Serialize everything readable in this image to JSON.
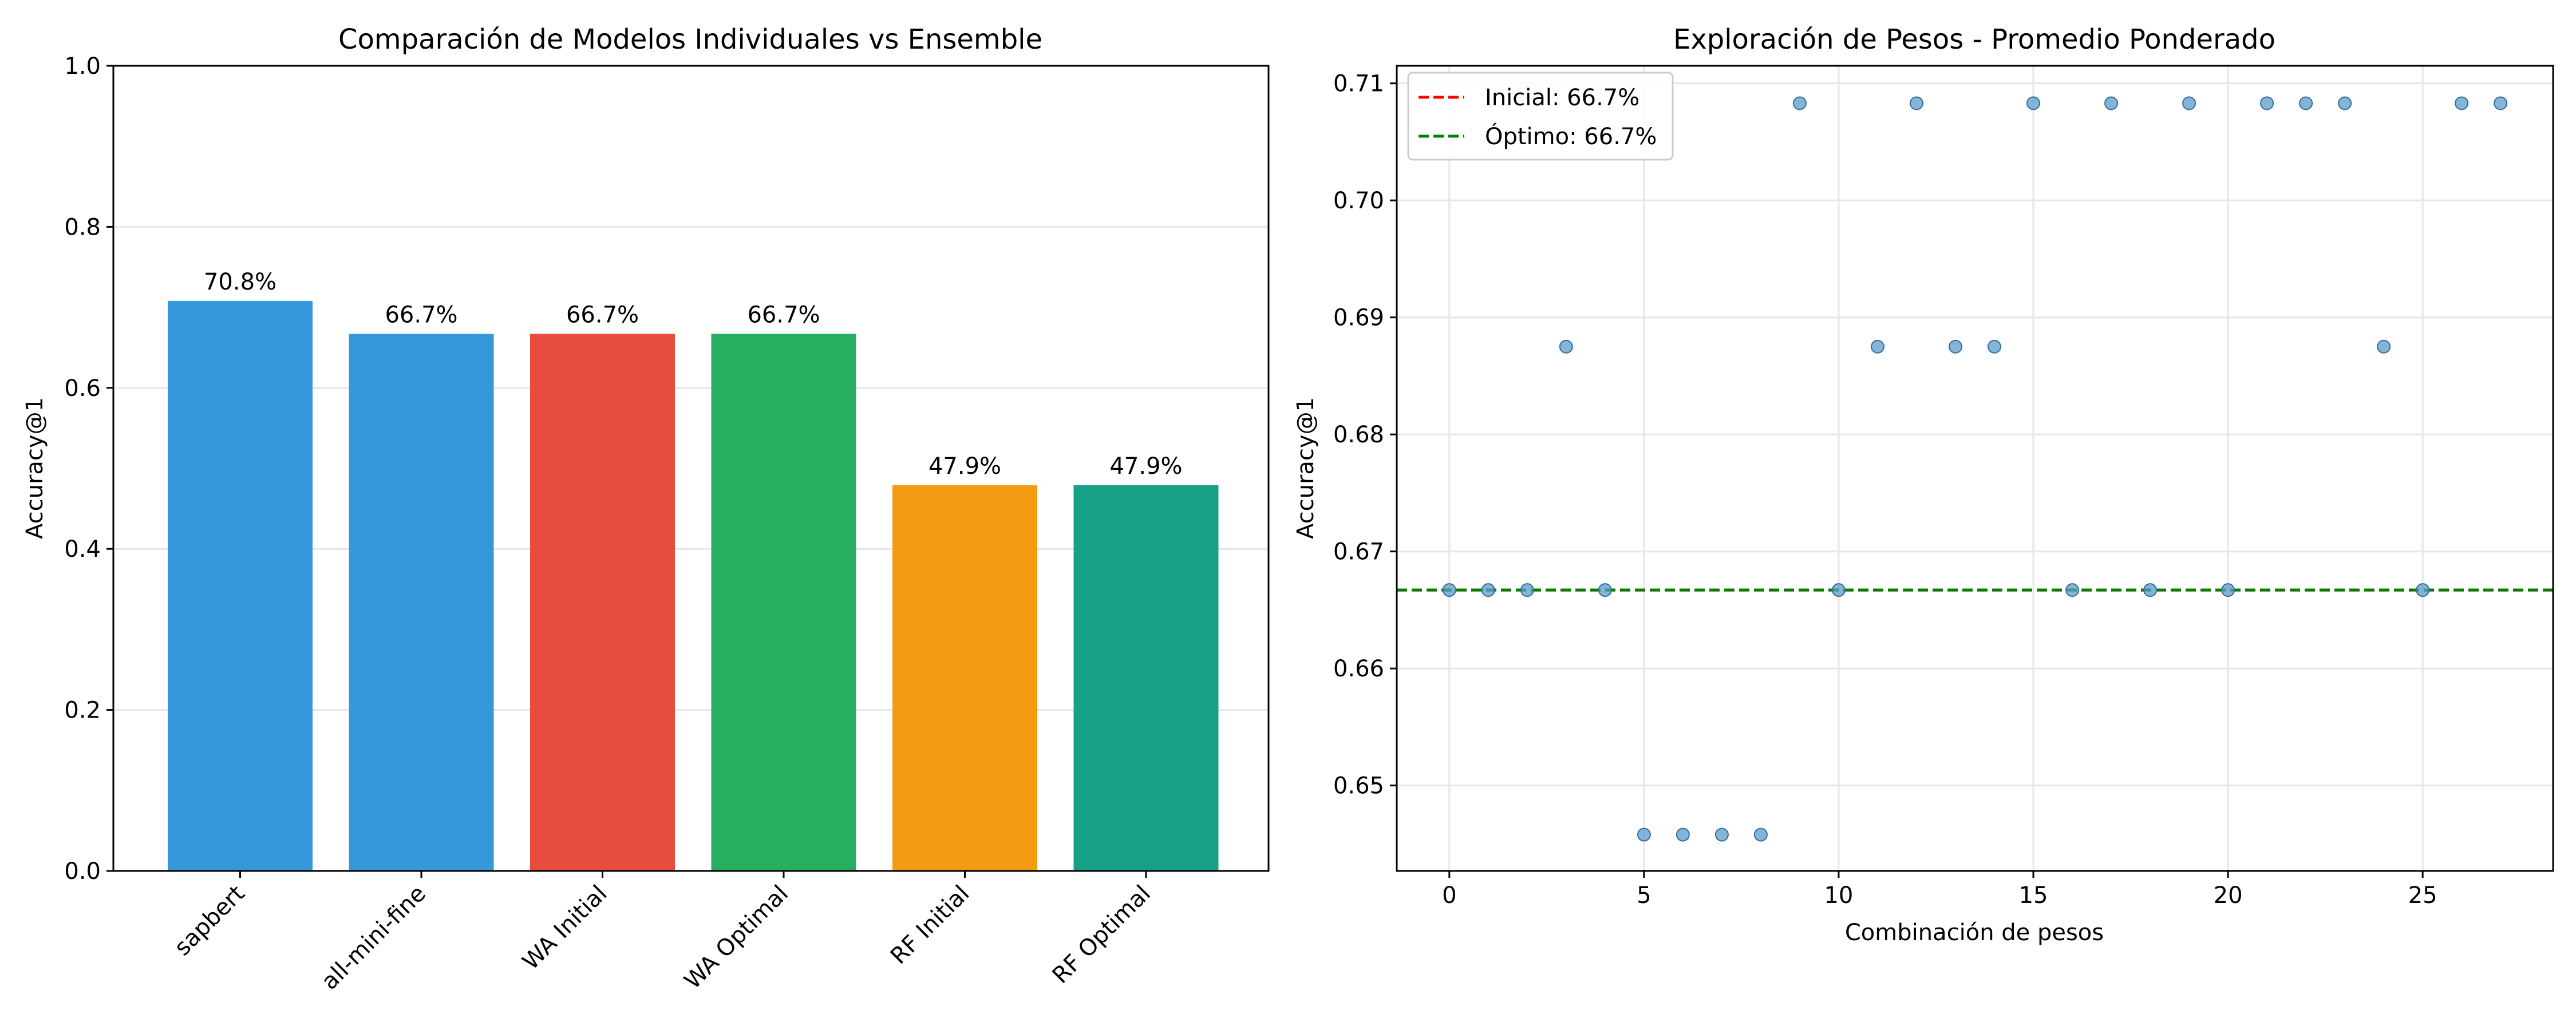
{
  "chart_data": [
    {
      "type": "bar",
      "title": "Comparación de Modelos Individuales vs Ensemble",
      "xlabel": "",
      "ylabel": "Accuracy@1",
      "ylim": [
        0,
        1.0
      ],
      "yticks": [
        0.0,
        0.2,
        0.4,
        0.6,
        0.8,
        1.0
      ],
      "ytick_labels": [
        "0.0",
        "0.2",
        "0.4",
        "0.6",
        "0.8",
        "1.0"
      ],
      "grid": "y",
      "categories": [
        "sapbert",
        "all-mini-fine",
        "WA Initial",
        "WA Optimal",
        "RF Initial",
        "RF Optimal"
      ],
      "values": [
        0.708,
        0.667,
        0.667,
        0.667,
        0.479,
        0.479
      ],
      "value_labels": [
        "70.8%",
        "66.7%",
        "66.7%",
        "66.7%",
        "47.9%",
        "47.9%"
      ],
      "colors": [
        "#3498db",
        "#3498db",
        "#e74c3c",
        "#27ae60",
        "#f39c12",
        "#16a085"
      ]
    },
    {
      "type": "scatter",
      "title": "Exploración de Pesos - Promedio Ponderado",
      "xlabel": "Combinación de pesos",
      "ylabel": "Accuracy@1",
      "xlim": [
        -1.35,
        28.35
      ],
      "ylim": [
        0.6427,
        0.7115
      ],
      "xticks": [
        0,
        5,
        10,
        15,
        20,
        25
      ],
      "xtick_labels": [
        "0",
        "5",
        "10",
        "15",
        "20",
        "25"
      ],
      "yticks": [
        0.65,
        0.66,
        0.67,
        0.68,
        0.69,
        0.7,
        0.71
      ],
      "ytick_labels": [
        "0.65",
        "0.66",
        "0.67",
        "0.68",
        "0.69",
        "0.70",
        "0.71"
      ],
      "grid": "both",
      "point_color": "#5b9bc8",
      "x": [
        0,
        1,
        2,
        3,
        4,
        5,
        6,
        7,
        8,
        9,
        10,
        11,
        12,
        13,
        14,
        15,
        16,
        17,
        18,
        19,
        20,
        21,
        22,
        23,
        24,
        25,
        26,
        27
      ],
      "y": [
        0.6667,
        0.6667,
        0.6667,
        0.6875,
        0.6667,
        0.6458,
        0.6458,
        0.6458,
        0.6458,
        0.7083,
        0.6667,
        0.6875,
        0.7083,
        0.6875,
        0.6875,
        0.7083,
        0.6667,
        0.7083,
        0.6667,
        0.7083,
        0.6667,
        0.7083,
        0.7083,
        0.7083,
        0.6875,
        0.6667,
        0.7083,
        0.7083
      ],
      "reference_lines": [
        {
          "name": "Inicial: 66.7%",
          "value": 0.6667,
          "color": "#ff0000",
          "style": "dashed"
        },
        {
          "name": "Óptimo: 66.7%",
          "value": 0.6667,
          "color": "#008000",
          "style": "dashed"
        }
      ],
      "legend_position": "top-left"
    }
  ]
}
